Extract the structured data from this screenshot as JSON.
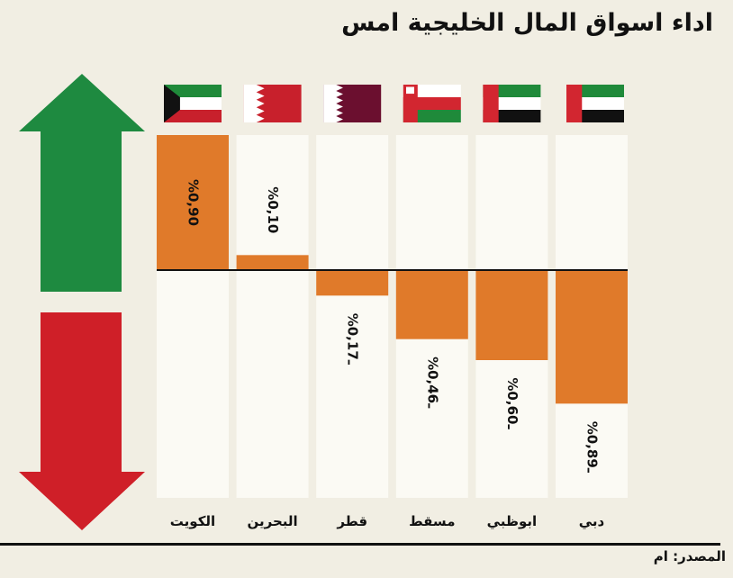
{
  "title": "اداء اسواق المال الخليجية امس",
  "credit": "المصدر: ام",
  "colors": {
    "background": "#f1eee3",
    "bar": "#e07a2a",
    "column": "#fbfaf4",
    "up_arrow": "#1e8a40",
    "down_arrow": "#cf1f28"
  },
  "chart_data": {
    "type": "bar",
    "orientation": "vertical",
    "categories": [
      "الكويت",
      "البحرين",
      "قطر",
      "مسقط",
      "ابوظبي",
      "دبي"
    ],
    "values": [
      0.9,
      0.1,
      -0.17,
      -0.46,
      -0.6,
      -0.89
    ],
    "value_labels": [
      "%0,90",
      "%0,10",
      "%ـ0,17",
      "%ـ0,46",
      "%ـ0,60",
      "%ـ0,89"
    ],
    "flags": [
      "kuwait-flag",
      "bahrain-flag",
      "qatar-flag",
      "oman-flag",
      "uae-flag",
      "uae-flag"
    ],
    "ylim": [
      -1.5,
      0.9
    ],
    "unit": "%",
    "grid": false,
    "legend": "none"
  }
}
